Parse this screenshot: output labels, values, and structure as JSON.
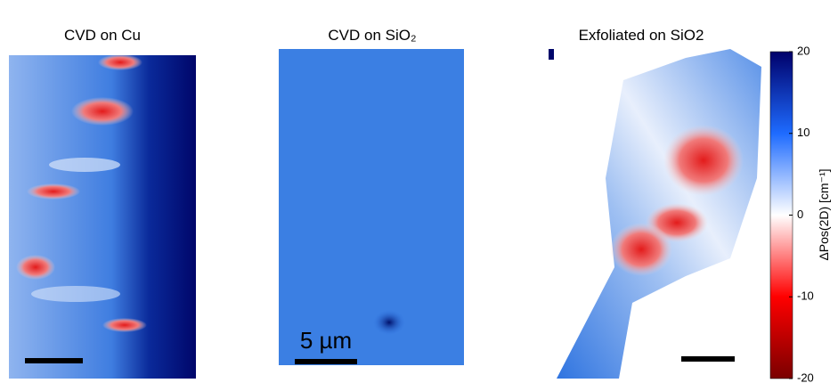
{
  "chart_data": {
    "type": "heatmap",
    "panels": [
      {
        "title": "CVD on Cu"
      },
      {
        "title": "CVD on SiO₂"
      },
      {
        "title": "Exfoliated on SiO2"
      }
    ],
    "scale_bar_label": "5 µm",
    "colorbar": {
      "label": "ΔPos(2D) [cm⁻¹]",
      "lim": [
        -20,
        20
      ],
      "ticks": [
        -20,
        -10,
        0,
        10,
        20
      ],
      "colors": [
        "#7a0000",
        "#ff0000",
        "#ffffff",
        "#1e6bff",
        "#00006a"
      ]
    }
  }
}
